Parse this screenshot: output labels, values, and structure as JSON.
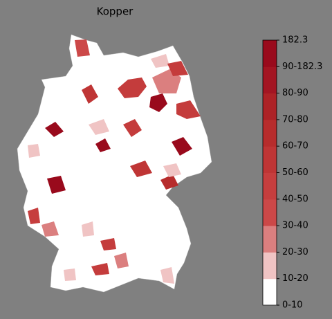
{
  "title": "Kopper",
  "colorbar": {
    "labels": [
      "0-10",
      "10-20",
      "20-30",
      "30-40",
      "40-50",
      "50-60",
      "60-70",
      "70-80",
      "80-90",
      "90-182.3",
      "182.3"
    ],
    "colors": [
      "#ffffff",
      "#f0c4c4",
      "#db7f7f",
      "#cc4848",
      "#c63e3e",
      "#bf3535",
      "#b72c2c",
      "#ad2226",
      "#a31522",
      "#990a1c"
    ]
  }
}
